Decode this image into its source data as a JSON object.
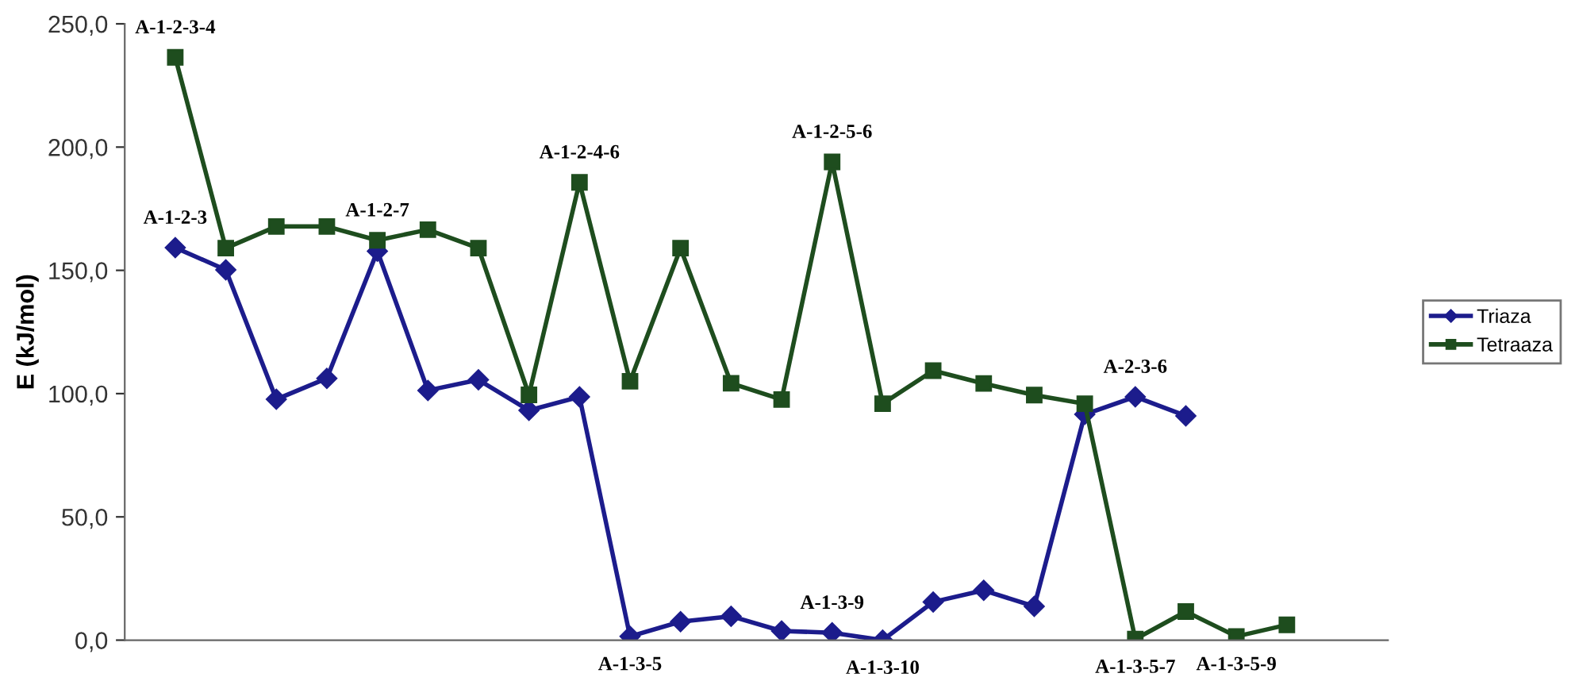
{
  "chart_data": {
    "type": "line",
    "ylabel": "E (kJ/mol)",
    "categories": [
      null,
      null,
      null,
      null,
      null,
      null,
      null,
      null,
      null,
      null,
      null,
      null,
      null,
      null,
      null,
      null,
      null,
      null,
      null,
      null,
      null,
      null,
      null
    ],
    "series": [
      {
        "name": "Triaza",
        "color": "#1c1c8c",
        "marker": "diamond",
        "values": [
          159.2,
          150.2,
          97.7,
          106.2,
          157.8,
          101.3,
          105.6,
          93.2,
          98.7,
          1.5,
          7.5,
          9.7,
          3.7,
          3.0,
          0,
          15.5,
          20.2,
          13.7,
          91.6,
          98.7,
          91.0,
          null,
          null
        ],
        "value_labels": [
          "A-1-2-3",
          null,
          null,
          null,
          null,
          null,
          null,
          null,
          null,
          "A-1-3-5",
          null,
          null,
          null,
          "A-1-3-9",
          "A-1-3-10",
          null,
          null,
          null,
          null,
          "A-2-3-6",
          null,
          null,
          null
        ]
      },
      {
        "name": "Tetraaza",
        "color": "#1e4d1e",
        "marker": "square",
        "values": [
          236.4,
          159.0,
          167.8,
          167.8,
          162.2,
          166.5,
          159.0,
          99.5,
          185.7,
          105.0,
          159.0,
          104.2,
          97.6,
          194.0,
          95.9,
          109.3,
          104.1,
          99.4,
          95.9,
          0.4,
          11.6,
          1.5,
          6.2
        ],
        "value_labels": [
          "A-1-2-3-4",
          null,
          null,
          null,
          "A-1-2-7",
          null,
          null,
          null,
          "A-1-2-4-6",
          null,
          null,
          null,
          null,
          "A-1-2-5-6",
          null,
          null,
          null,
          null,
          null,
          "A-1-3-5-7",
          null,
          "A-1-3-5-9",
          null
        ]
      }
    ],
    "ylim": [
      0,
      250
    ],
    "yticks": [
      {
        "value": 0,
        "label": "0,0"
      },
      {
        "value": 50,
        "label": "50,0"
      },
      {
        "value": 100,
        "label": "100,0"
      },
      {
        "value": 150,
        "label": "150,0"
      },
      {
        "value": 200,
        "label": "200,0"
      },
      {
        "value": 250,
        "label": "250,0"
      }
    ],
    "grid": false,
    "legend": "right",
    "line_style": "solid"
  }
}
